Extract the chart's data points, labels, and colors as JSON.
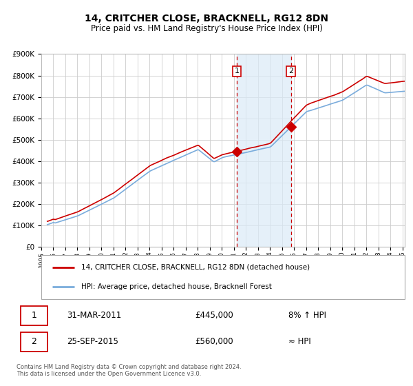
{
  "title": "14, CRITCHER CLOSE, BRACKNELL, RG12 8DN",
  "subtitle": "Price paid vs. HM Land Registry's House Price Index (HPI)",
  "ylim": [
    0,
    900000
  ],
  "xlim_start": 1995.5,
  "xlim_end": 2025.2,
  "red_color": "#cc0000",
  "blue_color": "#7aacdc",
  "blue_fill_color": "#daeaf7",
  "sale1_year": 2011.25,
  "sale1_price": 445000,
  "sale2_year": 2015.75,
  "sale2_price": 560000,
  "legend_line1": "14, CRITCHER CLOSE, BRACKNELL, RG12 8DN (detached house)",
  "legend_line2": "HPI: Average price, detached house, Bracknell Forest",
  "table_row1_num": "1",
  "table_row1_date": "31-MAR-2011",
  "table_row1_price": "£445,000",
  "table_row1_hpi": "8% ↑ HPI",
  "table_row2_num": "2",
  "table_row2_date": "25-SEP-2015",
  "table_row2_price": "£560,000",
  "table_row2_hpi": "≈ HPI",
  "footnote": "Contains HM Land Registry data © Crown copyright and database right 2024.\nThis data is licensed under the Open Government Licence v3.0.",
  "background_color": "#ffffff",
  "plot_bg_color": "#ffffff",
  "grid_color": "#cccccc"
}
